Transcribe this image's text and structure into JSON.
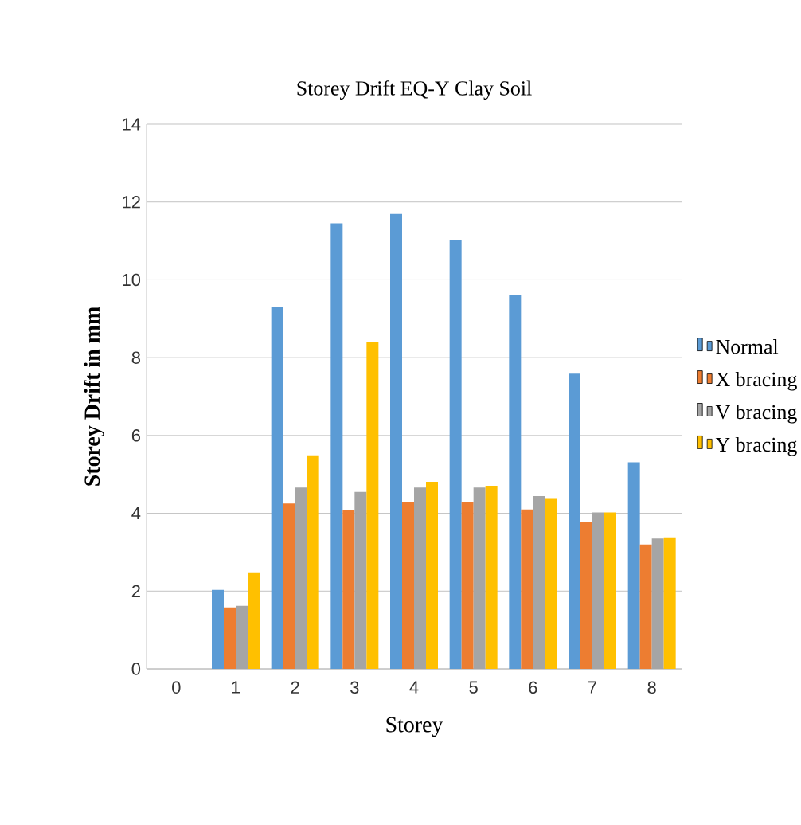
{
  "chart_data": {
    "type": "bar",
    "title": "Storey Drift EQ-Y Clay Soil",
    "xlabel": "Storey",
    "ylabel": "Storey Drift in mm",
    "categories": [
      "0",
      "1",
      "2",
      "3",
      "4",
      "5",
      "6",
      "7",
      "8"
    ],
    "series": [
      {
        "name": "Normal",
        "color": "#5b9bd5",
        "values": [
          null,
          2.03,
          9.3,
          11.45,
          11.69,
          11.03,
          9.6,
          7.59,
          5.31
        ]
      },
      {
        "name": "X bracing",
        "color": "#ed7d31",
        "values": [
          null,
          1.58,
          4.25,
          4.09,
          4.28,
          4.28,
          4.1,
          3.77,
          3.2
        ]
      },
      {
        "name": "V bracing",
        "color": "#a5a5a5",
        "values": [
          null,
          1.62,
          4.66,
          4.55,
          4.66,
          4.66,
          4.44,
          4.02,
          3.35
        ]
      },
      {
        "name": "Y bracing",
        "color": "#ffc000",
        "values": [
          null,
          2.48,
          5.49,
          8.41,
          4.81,
          4.71,
          4.39,
          4.02,
          3.38
        ]
      }
    ],
    "ylim": [
      0,
      14
    ],
    "yticks": [
      0,
      2,
      4,
      6,
      8,
      10,
      12,
      14
    ],
    "grid": "y",
    "legend": "right"
  }
}
